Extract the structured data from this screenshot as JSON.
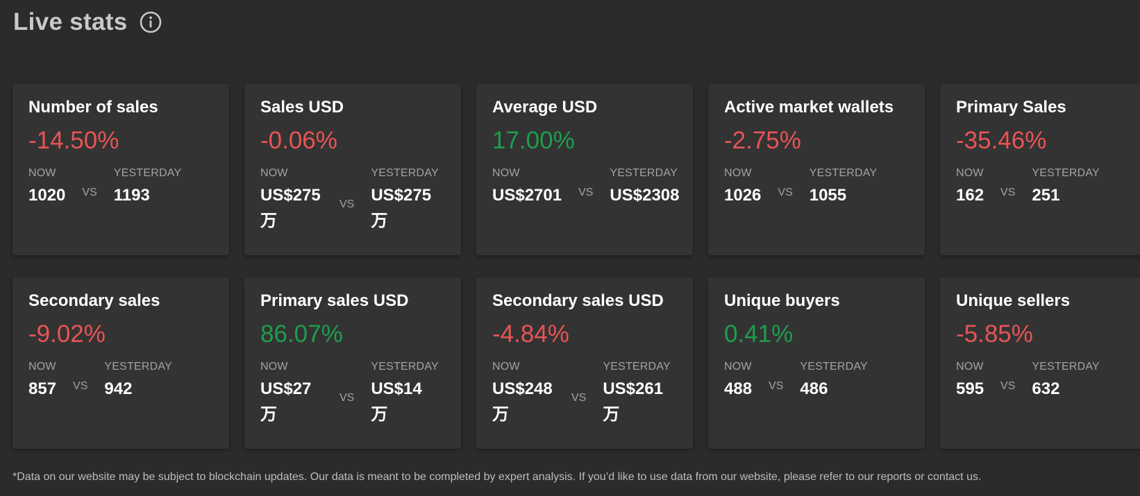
{
  "header": {
    "title": "Live stats",
    "info_icon": "info-circle-icon"
  },
  "colors": {
    "background": "#2b2b2b",
    "card": "#333333",
    "negative": "#e95454",
    "positive": "#1e9e4e"
  },
  "labels": {
    "now": "NOW",
    "yesterday": "YESTERDAY",
    "vs": "VS"
  },
  "cards": [
    {
      "title": "Number of sales",
      "change": "-14.50%",
      "trend": "negative",
      "now": "1020",
      "yesterday": "1193"
    },
    {
      "title": "Sales USD",
      "change": "-0.06%",
      "trend": "negative",
      "now": "US$275 万",
      "yesterday": "US$275 万"
    },
    {
      "title": "Average USD",
      "change": "17.00%",
      "trend": "positive",
      "now": "US$2701",
      "yesterday": "US$2308"
    },
    {
      "title": "Active market wallets",
      "change": "-2.75%",
      "trend": "negative",
      "now": "1026",
      "yesterday": "1055"
    },
    {
      "title": "Primary Sales",
      "change": "-35.46%",
      "trend": "negative",
      "now": "162",
      "yesterday": "251"
    },
    {
      "title": "Secondary sales",
      "change": "-9.02%",
      "trend": "negative",
      "now": "857",
      "yesterday": "942"
    },
    {
      "title": "Primary sales USD",
      "change": "86.07%",
      "trend": "positive",
      "now": "US$27 万",
      "yesterday": "US$14 万"
    },
    {
      "title": "Secondary sales USD",
      "change": "-4.84%",
      "trend": "negative",
      "now": "US$248 万",
      "yesterday": "US$261 万"
    },
    {
      "title": "Unique buyers",
      "change": "0.41%",
      "trend": "positive",
      "now": "488",
      "yesterday": "486"
    },
    {
      "title": "Unique sellers",
      "change": "-5.85%",
      "trend": "negative",
      "now": "595",
      "yesterday": "632"
    }
  ],
  "footnote": "*Data on our website may be subject to blockchain updates. Our data is meant to be completed by expert analysis. If you’d like to use data from our website, please refer to our reports or contact us."
}
